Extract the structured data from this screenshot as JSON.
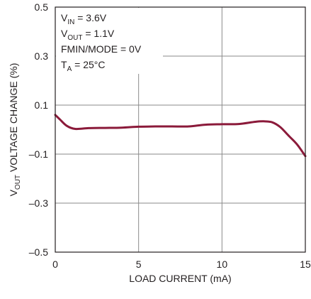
{
  "chart_data": {
    "type": "line",
    "xlabel": "LOAD CURRENT (mA)",
    "ylabel_main": "V",
    "ylabel_sub": "OUT",
    "ylabel_rest": " VOLTAGE CHANGE (%)",
    "xlim": [
      0,
      15
    ],
    "ylim": [
      -0.5,
      0.5
    ],
    "x_ticks": [
      "0",
      "5",
      "10",
      "15"
    ],
    "y_ticks": [
      "0.5",
      "0.3",
      "0.1",
      "–0.1",
      "–0.3",
      "–0.5"
    ],
    "grid": true,
    "series": [
      {
        "color": "#8b1a3a",
        "x": [
          0,
          0.3,
          0.7,
          1.2,
          2,
          3,
          4,
          5,
          6,
          7,
          8,
          9,
          10,
          11,
          12,
          12.5,
          13,
          13.5,
          14,
          14.5,
          15
        ],
        "y": [
          0.06,
          0.04,
          0.015,
          0.003,
          0.006,
          0.007,
          0.008,
          0.012,
          0.013,
          0.013,
          0.013,
          0.02,
          0.022,
          0.023,
          0.032,
          0.034,
          0.03,
          0.01,
          -0.025,
          -0.06,
          -0.108
        ]
      }
    ],
    "annotations": [
      {
        "main": "V",
        "sub": "IN",
        "rest": " = 3.6V"
      },
      {
        "main": "V",
        "sub": "OUT",
        "rest": " = 1.1V"
      },
      {
        "main": "FMIN/MODE = 0V",
        "sub": "",
        "rest": ""
      },
      {
        "main": "T",
        "sub": "A",
        "rest": " = 25°C"
      }
    ]
  }
}
